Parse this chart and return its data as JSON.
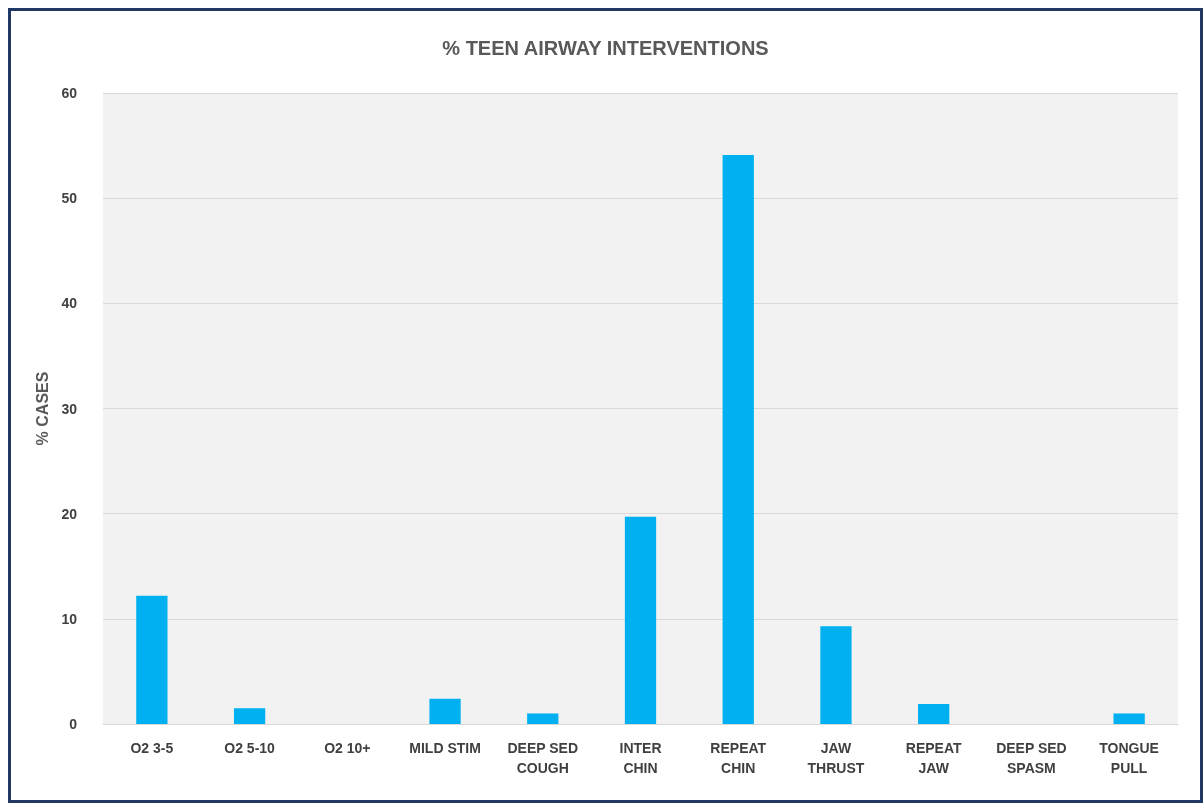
{
  "chart_data": {
    "type": "bar",
    "title": "% TEEN AIRWAY INTERVENTIONS",
    "ylabel": "% CASES",
    "categories": [
      "O2 3-5",
      "O2 5-10",
      "O2 10+",
      "MILD STIM",
      "DEEP SED\nCOUGH",
      "INTER\nCHIN",
      "REPEAT\nCHIN",
      "JAW\nTHRUST",
      "REPEAT\nJAW",
      "DEEP SED\nSPASM",
      "TONGUE\nPULL"
    ],
    "values": [
      12.2,
      1.5,
      0,
      2.4,
      1.0,
      19.7,
      54.1,
      9.3,
      1.9,
      0,
      1.0
    ],
    "color": "#00b0f0",
    "ylim": [
      0,
      60
    ],
    "yticks": [
      0,
      10,
      20,
      30,
      40,
      50,
      60
    ],
    "grid": "y"
  }
}
